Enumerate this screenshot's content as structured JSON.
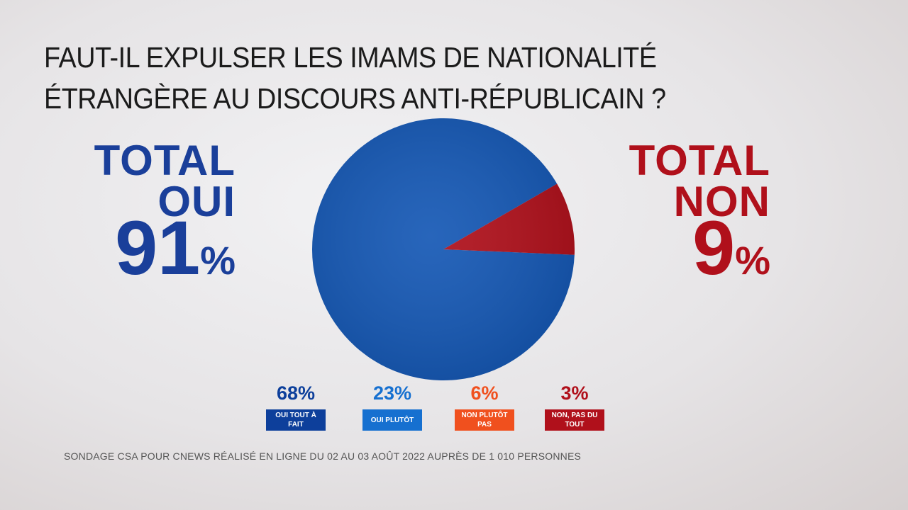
{
  "chart_data": {
    "type": "pie",
    "title": "FAUT-IL EXPULSER LES IMAMS DE NATIONALITÉ ÉTRANGÈRE AU DISCOURS ANTI-RÉPUBLICAIN ?",
    "categories": [
      "TOTAL OUI",
      "TOTAL NON"
    ],
    "values": [
      91,
      9
    ],
    "value_labels": [
      "91%",
      "9%"
    ],
    "colors": [
      "#1558b5",
      "#b0101b"
    ],
    "breakdown": {
      "categories": [
        "OUI TOUT À FAIT",
        "OUI PLUTÔT",
        "NON PLUTÔT PAS",
        "NON, PAS DU TOUT"
      ],
      "values": [
        68,
        23,
        6,
        3
      ],
      "value_labels": [
        "68%",
        "23%",
        "6%",
        "3%"
      ],
      "colors": [
        "#0d3f9b",
        "#1670d0",
        "#f0501e",
        "#b0101b"
      ]
    },
    "source": "SONDAGE CSA POUR CNEWS RÉALISÉ EN LIGNE DU 02 AU 03 AOÛT 2022 AUPRÈS DE 1 010 PERSONNES"
  }
}
